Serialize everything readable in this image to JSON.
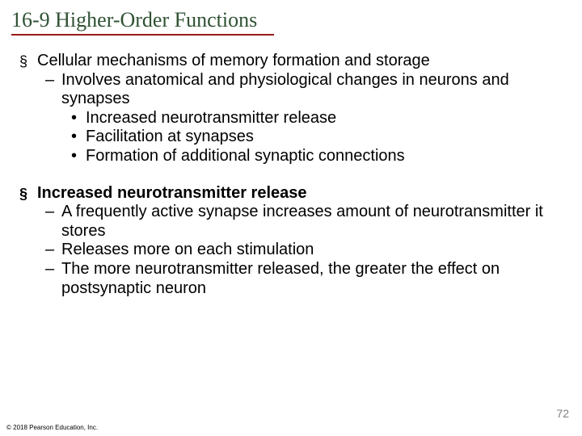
{
  "title": "16-9 Higher-Order Functions",
  "colors": {
    "title": "#2f5233",
    "rule": "#9a1b1b",
    "text": "#000000",
    "page_num": "#808080",
    "background": "#ffffff"
  },
  "fontsizes": {
    "title": 26,
    "body": 20,
    "page_num": 14,
    "copyright": 8
  },
  "bullets": {
    "l1": "§",
    "l2": "–",
    "l3": "•"
  },
  "block1": {
    "l1": "Cellular mechanisms of memory formation and storage",
    "l2a": "Involves anatomical and physiological changes in neurons and synapses",
    "l3a": "Increased neurotransmitter release",
    "l3b": "Facilitation at synapses",
    "l3c": "Formation of additional synaptic connections"
  },
  "block2": {
    "l1": "Increased neurotransmitter release",
    "l2a": "A frequently active synapse increases amount of neurotransmitter it stores",
    "l2b": "Releases more on each stimulation",
    "l2c": "The more neurotransmitter released, the greater the effect on postsynaptic neuron"
  },
  "page_number": "72",
  "copyright": "© 2018 Pearson Education, Inc."
}
